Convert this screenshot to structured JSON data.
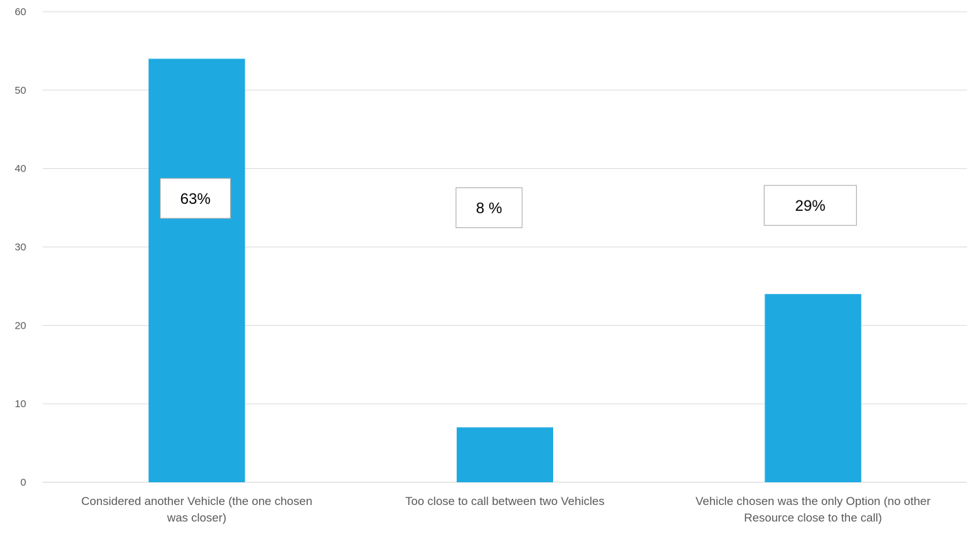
{
  "chart_data": {
    "type": "bar",
    "title": "",
    "xlabel": "",
    "ylabel": "",
    "categories": [
      [
        "Considered another Vehicle (the one chosen",
        "was closer)"
      ],
      [
        "Too close to call between two Vehicles"
      ],
      [
        "Vehicle chosen was the only Option (no other",
        "Resource close to the call)"
      ]
    ],
    "values": [
      54,
      7,
      24
    ],
    "ylim": [
      0,
      60
    ],
    "yticks": [
      0,
      10,
      20,
      30,
      40,
      50,
      60
    ],
    "grid": true,
    "bar_color": "#1EAAE1",
    "annotations": [
      {
        "category_index": 0,
        "text": "63%"
      },
      {
        "category_index": 1,
        "text": "8 %"
      },
      {
        "category_index": 2,
        "text": "29%"
      }
    ],
    "annotation_levels": [
      36.2,
      35.0,
      35.3
    ]
  }
}
